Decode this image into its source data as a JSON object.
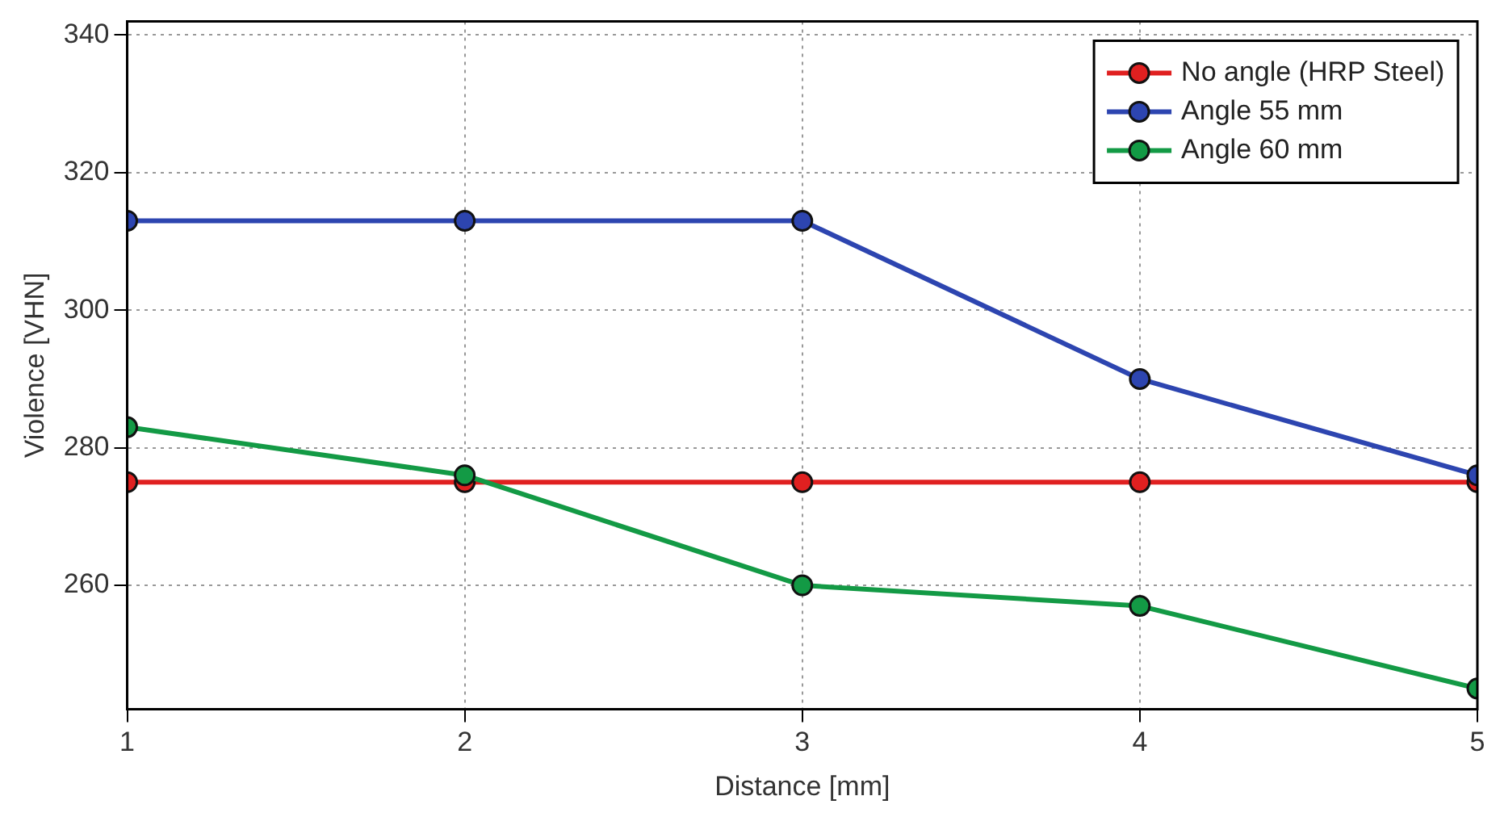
{
  "chart_data": {
    "type": "line",
    "xlabel": "Distance [mm]",
    "ylabel": "Violence [VHN]",
    "x": [
      1,
      2,
      3,
      4,
      5
    ],
    "xlim": [
      1,
      5
    ],
    "xticks": [
      1,
      2,
      3,
      4,
      5
    ],
    "ylim": [
      242,
      342
    ],
    "yticks": [
      260,
      280,
      300,
      320,
      340
    ],
    "series": [
      {
        "name": "No angle (HRP Steel)",
        "color": "#e02020",
        "values": [
          275,
          275,
          275,
          275,
          275
        ]
      },
      {
        "name": "Angle 55 mm",
        "color": "#2d45b0",
        "values": [
          313,
          313,
          313,
          290,
          276
        ]
      },
      {
        "name": "Angle 60 mm",
        "color": "#139a45",
        "values": [
          283,
          276,
          260,
          257,
          245
        ]
      }
    ],
    "grid": true,
    "legend": "top right",
    "marker": "circle",
    "line_style": "solid"
  }
}
